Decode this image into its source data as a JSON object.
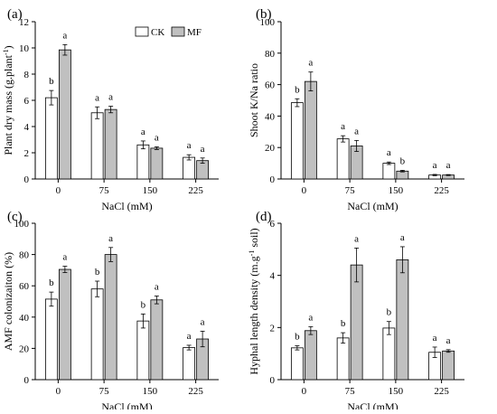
{
  "chart_data": [
    {
      "panel": "(a)",
      "type": "bar",
      "categories": [
        "0",
        "75",
        "150",
        "225"
      ],
      "xlabel": "NaCl (mM)",
      "ylabel": "Plant dry mass (g.plant",
      "ylabel_sup": "-1",
      "ylabel_close": ")",
      "ylim": [
        0,
        12
      ],
      "yticks": [
        0,
        2,
        4,
        6,
        8,
        10,
        12
      ],
      "legend": {
        "placement": "top-center",
        "entries": [
          "CK",
          "MF"
        ]
      },
      "series": [
        {
          "name": "CK",
          "color": "#ffffff",
          "values": [
            6.2,
            5.05,
            2.6,
            1.65
          ],
          "errors": [
            0.55,
            0.45,
            0.3,
            0.2
          ],
          "labels": [
            "b",
            "a",
            "a",
            "a"
          ]
        },
        {
          "name": "MF",
          "color": "#c0c0c0",
          "values": [
            9.85,
            5.3,
            2.35,
            1.4
          ],
          "errors": [
            0.4,
            0.25,
            0.1,
            0.2
          ],
          "labels": [
            "a",
            "a",
            "a",
            "a"
          ]
        }
      ]
    },
    {
      "panel": "(b)",
      "type": "bar",
      "categories": [
        "0",
        "75",
        "150",
        "225"
      ],
      "xlabel": "NaCl (mM)",
      "ylabel": "Shoot K/Na ratio",
      "ylim": [
        0,
        100
      ],
      "yticks": [
        0,
        20,
        40,
        60,
        80,
        100
      ],
      "series": [
        {
          "name": "CK",
          "color": "#ffffff",
          "values": [
            48.5,
            25.5,
            10.0,
            2.5
          ],
          "errors": [
            2.5,
            2.0,
            0.8,
            0.4
          ],
          "labels": [
            "b",
            "a",
            "a",
            "a"
          ]
        },
        {
          "name": "MF",
          "color": "#c0c0c0",
          "values": [
            62.0,
            21.0,
            5.0,
            2.5
          ],
          "errors": [
            6.0,
            3.5,
            0.5,
            0.3
          ],
          "labels": [
            "a",
            "a",
            "b",
            "a"
          ]
        }
      ]
    },
    {
      "panel": "(c)",
      "type": "bar",
      "categories": [
        "0",
        "75",
        "150",
        "225"
      ],
      "xlabel": "NaCl (mM)",
      "ylabel": "AMF colonizaiton (%)",
      "ylim": [
        0,
        100
      ],
      "yticks": [
        0,
        20,
        40,
        60,
        80,
        100
      ],
      "series": [
        {
          "name": "CK",
          "color": "#ffffff",
          "values": [
            51.5,
            58.0,
            37.5,
            20.5
          ],
          "errors": [
            4.5,
            5.0,
            4.5,
            1.5
          ],
          "labels": [
            "b",
            "b",
            "b",
            "a"
          ]
        },
        {
          "name": "MF",
          "color": "#c0c0c0",
          "values": [
            70.5,
            80.0,
            51.0,
            26.0
          ],
          "errors": [
            2.0,
            4.5,
            2.5,
            5.0
          ],
          "labels": [
            "a",
            "a",
            "a",
            "a"
          ]
        }
      ]
    },
    {
      "panel": "(d)",
      "type": "bar",
      "categories": [
        "0",
        "75",
        "150",
        "225"
      ],
      "xlabel": "NaCl (mM)",
      "ylabel": "Hyphal length density (m.g",
      "ylabel_sup": "-1",
      "ylabel_close": " soil)",
      "ylim": [
        0,
        6
      ],
      "yticks": [
        0,
        2,
        4,
        6
      ],
      "series": [
        {
          "name": "CK",
          "color": "#ffffff",
          "values": [
            1.22,
            1.6,
            1.98,
            1.05
          ],
          "errors": [
            0.08,
            0.2,
            0.25,
            0.2
          ],
          "labels": [
            "b",
            "b",
            "b",
            "a"
          ]
        },
        {
          "name": "MF",
          "color": "#c0c0c0",
          "values": [
            1.88,
            4.4,
            4.6,
            1.1
          ],
          "errors": [
            0.15,
            0.65,
            0.5,
            0.05
          ],
          "labels": [
            "a",
            "a",
            "a",
            "a"
          ]
        }
      ]
    }
  ]
}
